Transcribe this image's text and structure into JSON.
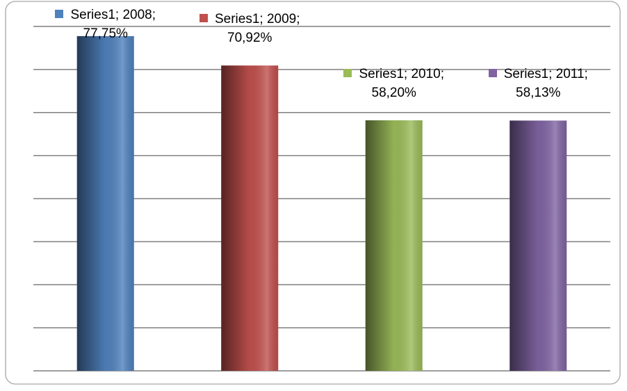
{
  "chart_data": {
    "type": "bar",
    "series": [
      {
        "name": "Series1",
        "values": [
          77.75,
          70.92,
          58.2,
          58.13
        ],
        "value_labels": [
          "Series1; 2008; 77,75%",
          "Series1; 2009; 70,92%",
          "Series1; 2010; 58,20%",
          "Series1; 2011; 58,13%"
        ]
      }
    ],
    "categories": [
      "2008",
      "2009",
      "2010",
      "2011"
    ],
    "colors": [
      "#4f81bd",
      "#c0504d",
      "#9bbb59",
      "#8064a2"
    ],
    "ylim": [
      0,
      80
    ],
    "yticks": [
      0,
      10,
      20,
      30,
      40,
      50,
      60,
      70,
      80
    ],
    "grid": true
  }
}
